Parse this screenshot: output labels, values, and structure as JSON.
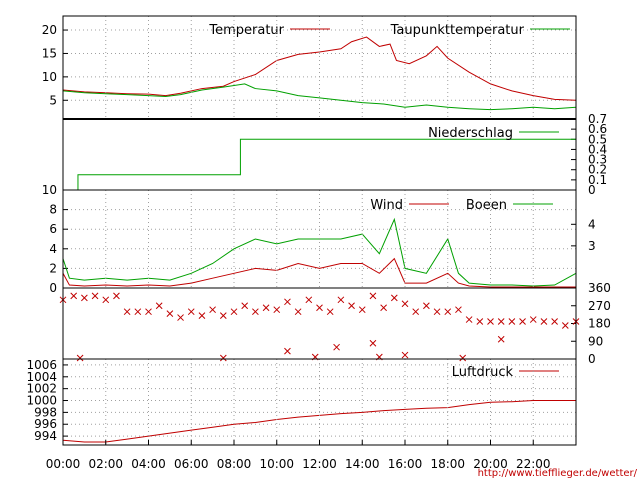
{
  "chart_data": {
    "type": "line",
    "x_tick_labels": [
      "00:00",
      "02:00",
      "04:00",
      "06:00",
      "08:00",
      "10:00",
      "12:00",
      "14:00",
      "16:00",
      "18:00",
      "20:00",
      "22:00"
    ],
    "x_range_hours": [
      0,
      24
    ],
    "colors": {
      "red": "#c00000",
      "green": "#00a000",
      "grid": "#a0a0a0"
    },
    "source_url": "http://www.tiefflieger.de/wetter/",
    "panels": [
      {
        "name": "temperature",
        "ylim": [
          1,
          23
        ],
        "y_ticks": [
          5,
          10,
          15,
          20
        ],
        "y_tick_labels": [
          "5",
          "10",
          "15",
          "20"
        ],
        "series": [
          {
            "name": "Temperatur",
            "color": "red",
            "points": [
              [
                0,
                7.2
              ],
              [
                1,
                6.8
              ],
              [
                2,
                6.6
              ],
              [
                3,
                6.4
              ],
              [
                4,
                6.3
              ],
              [
                4.8,
                6.0
              ],
              [
                5.5,
                6.5
              ],
              [
                6.5,
                7.5
              ],
              [
                7.5,
                8.0
              ],
              [
                8,
                9.0
              ],
              [
                9,
                10.5
              ],
              [
                10,
                13.5
              ],
              [
                11,
                14.8
              ],
              [
                12,
                15.3
              ],
              [
                13,
                16.0
              ],
              [
                13.5,
                17.5
              ],
              [
                14.2,
                18.5
              ],
              [
                14.8,
                16.5
              ],
              [
                15.3,
                17.0
              ],
              [
                15.6,
                13.5
              ],
              [
                16.2,
                12.8
              ],
              [
                17,
                14.5
              ],
              [
                17.5,
                16.5
              ],
              [
                18,
                14.0
              ],
              [
                19,
                11.0
              ],
              [
                20,
                8.5
              ],
              [
                21,
                7.0
              ],
              [
                22,
                6.0
              ],
              [
                23,
                5.2
              ],
              [
                24,
                5.0
              ]
            ]
          },
          {
            "name": "Taupunkttemperatur",
            "color": "green",
            "points": [
              [
                0,
                7.0
              ],
              [
                1,
                6.6
              ],
              [
                2,
                6.4
              ],
              [
                3,
                6.2
              ],
              [
                4,
                6.0
              ],
              [
                4.8,
                5.8
              ],
              [
                5.5,
                6.2
              ],
              [
                6.5,
                7.2
              ],
              [
                7.5,
                7.8
              ],
              [
                8.5,
                8.5
              ],
              [
                9,
                7.5
              ],
              [
                10,
                7.0
              ],
              [
                11,
                6.0
              ],
              [
                12,
                5.5
              ],
              [
                13,
                5.0
              ],
              [
                14,
                4.5
              ],
              [
                15,
                4.2
              ],
              [
                16,
                3.5
              ],
              [
                17,
                4.0
              ],
              [
                18,
                3.5
              ],
              [
                19,
                3.2
              ],
              [
                20,
                3.0
              ],
              [
                21,
                3.2
              ],
              [
                22,
                3.5
              ],
              [
                23,
                3.2
              ],
              [
                24,
                3.5
              ]
            ]
          }
        ]
      },
      {
        "name": "precipitation",
        "ylim": [
          0,
          0.7
        ],
        "y_ticks": [
          0,
          0.1,
          0.2,
          0.3,
          0.4,
          0.5,
          0.6,
          0.7
        ],
        "y_tick_labels": [
          "0",
          "0.1",
          "0.2",
          "0.3",
          "0.4",
          "0.5",
          "0.6",
          "0.7"
        ],
        "series": [
          {
            "name": "Niederschlag",
            "color": "green",
            "points": [
              [
                0.7,
                0
              ],
              [
                0.7,
                0.15
              ],
              [
                8.3,
                0.15
              ],
              [
                8.3,
                0.5
              ],
              [
                24,
                0.5
              ]
            ]
          }
        ]
      },
      {
        "name": "wind",
        "ylim": [
          0,
          10
        ],
        "y_ticks": [
          0,
          2,
          4,
          6,
          8,
          10
        ],
        "y_tick_labels": [
          "0",
          "2",
          "4",
          "6",
          "8",
          "10"
        ],
        "right_labels": [
          {
            "label": "4",
            "y": 6.5
          },
          {
            "label": "3",
            "y": 4.3
          }
        ],
        "series": [
          {
            "name": "Wind",
            "color": "red",
            "points": [
              [
                0,
                1.5
              ],
              [
                0.3,
                0.3
              ],
              [
                1,
                0.2
              ],
              [
                2,
                0.3
              ],
              [
                3,
                0.2
              ],
              [
                4,
                0.3
              ],
              [
                5,
                0.2
              ],
              [
                6,
                0.5
              ],
              [
                7,
                1.0
              ],
              [
                8,
                1.5
              ],
              [
                9,
                2.0
              ],
              [
                10,
                1.8
              ],
              [
                11,
                2.5
              ],
              [
                12,
                2.0
              ],
              [
                13,
                2.5
              ],
              [
                14,
                2.5
              ],
              [
                14.8,
                1.5
              ],
              [
                15.5,
                3.0
              ],
              [
                16,
                0.5
              ],
              [
                17,
                0.5
              ],
              [
                18,
                1.5
              ],
              [
                18.5,
                0.5
              ],
              [
                19,
                0.2
              ],
              [
                20,
                0.1
              ],
              [
                21,
                0.1
              ],
              [
                22,
                0.1
              ],
              [
                23,
                0.1
              ],
              [
                24,
                0.1
              ]
            ]
          },
          {
            "name": "Boeen",
            "color": "green",
            "points": [
              [
                0,
                3.0
              ],
              [
                0.3,
                1.0
              ],
              [
                1,
                0.8
              ],
              [
                2,
                1.0
              ],
              [
                3,
                0.8
              ],
              [
                4,
                1.0
              ],
              [
                5,
                0.8
              ],
              [
                6,
                1.5
              ],
              [
                7,
                2.5
              ],
              [
                8,
                4.0
              ],
              [
                9,
                5.0
              ],
              [
                10,
                4.5
              ],
              [
                11,
                5.0
              ],
              [
                12,
                5.0
              ],
              [
                13,
                5.0
              ],
              [
                14,
                5.5
              ],
              [
                14.8,
                3.5
              ],
              [
                15.5,
                7.0
              ],
              [
                16,
                2.0
              ],
              [
                17,
                1.5
              ],
              [
                18,
                5.0
              ],
              [
                18.5,
                1.5
              ],
              [
                19,
                0.5
              ],
              [
                20,
                0.3
              ],
              [
                21,
                0.3
              ],
              [
                22,
                0.2
              ],
              [
                23,
                0.3
              ],
              [
                24,
                1.5
              ]
            ]
          }
        ]
      },
      {
        "name": "wind_direction",
        "type": "scatter",
        "marker": "x",
        "color": "red",
        "ylim": [
          0,
          360
        ],
        "right_ticks": [
          0,
          90,
          180,
          270,
          360
        ],
        "right_tick_labels": [
          "0",
          "90",
          "180",
          "270",
          "360"
        ],
        "points": [
          [
            0,
            300
          ],
          [
            0.5,
            320
          ],
          [
            1,
            310
          ],
          [
            1.5,
            320
          ],
          [
            2,
            300
          ],
          [
            2.5,
            320
          ],
          [
            3,
            240
          ],
          [
            3.5,
            240
          ],
          [
            4,
            240
          ],
          [
            4.5,
            270
          ],
          [
            5,
            230
          ],
          [
            5.5,
            210
          ],
          [
            6,
            240
          ],
          [
            6.5,
            220
          ],
          [
            7,
            250
          ],
          [
            7.5,
            220
          ],
          [
            8,
            240
          ],
          [
            8.5,
            270
          ],
          [
            9,
            240
          ],
          [
            9.5,
            260
          ],
          [
            10,
            250
          ],
          [
            10.5,
            290
          ],
          [
            11,
            240
          ],
          [
            11.5,
            300
          ],
          [
            12,
            260
          ],
          [
            12.5,
            240
          ],
          [
            13,
            300
          ],
          [
            13.5,
            270
          ],
          [
            14,
            250
          ],
          [
            14.5,
            320
          ],
          [
            15,
            260
          ],
          [
            15.5,
            310
          ],
          [
            16,
            280
          ],
          [
            16.5,
            240
          ],
          [
            17,
            270
          ],
          [
            17.5,
            240
          ],
          [
            18,
            240
          ],
          [
            18.5,
            250
          ],
          [
            19,
            200
          ],
          [
            19.5,
            190
          ],
          [
            20,
            190
          ],
          [
            20.5,
            190
          ],
          [
            21,
            190
          ],
          [
            21.5,
            190
          ],
          [
            22,
            200
          ],
          [
            22.5,
            190
          ],
          [
            23,
            190
          ],
          [
            23.5,
            170
          ],
          [
            24,
            190
          ],
          [
            0.8,
            5
          ],
          [
            7.5,
            5
          ],
          [
            10.5,
            40
          ],
          [
            11.8,
            10
          ],
          [
            12.8,
            60
          ],
          [
            14.5,
            80
          ],
          [
            14.8,
            10
          ],
          [
            16,
            20
          ],
          [
            18.7,
            5
          ],
          [
            20.5,
            100
          ]
        ]
      },
      {
        "name": "pressure",
        "ylim": [
          992.5,
          1007
        ],
        "y_ticks": [
          994,
          996,
          998,
          1000,
          1002,
          1004,
          1006
        ],
        "y_tick_labels": [
          "994",
          "996",
          "998",
          "1000",
          "1002",
          "1004",
          "1006"
        ],
        "series": [
          {
            "name": "Luftdruck",
            "color": "red",
            "points": [
              [
                0,
                993.3
              ],
              [
                1,
                993.0
              ],
              [
                2,
                993.0
              ],
              [
                3,
                993.5
              ],
              [
                4,
                994.0
              ],
              [
                5,
                994.5
              ],
              [
                6,
                995.0
              ],
              [
                7,
                995.5
              ],
              [
                8,
                996.0
              ],
              [
                9,
                996.3
              ],
              [
                10,
                996.8
              ],
              [
                11,
                997.2
              ],
              [
                12,
                997.5
              ],
              [
                13,
                997.8
              ],
              [
                14,
                998.0
              ],
              [
                15,
                998.3
              ],
              [
                16,
                998.5
              ],
              [
                17,
                998.7
              ],
              [
                18,
                998.8
              ],
              [
                19,
                999.3
              ],
              [
                20,
                999.7
              ],
              [
                21,
                999.8
              ],
              [
                22,
                1000.0
              ],
              [
                23,
                1000.0
              ],
              [
                24,
                1000.0
              ]
            ]
          }
        ]
      }
    ]
  }
}
